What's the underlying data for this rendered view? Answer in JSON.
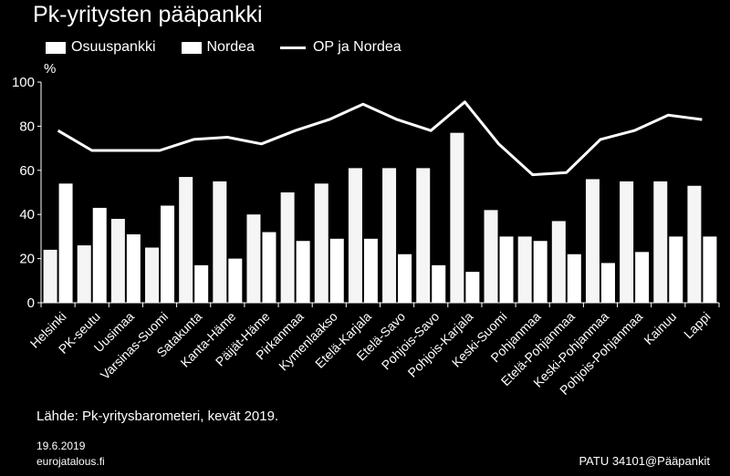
{
  "chart_data": {
    "type": "bar",
    "title": "Pk-yritysten pääpankki",
    "ylabel": "%",
    "ylim": [
      0,
      100
    ],
    "yticks": [
      0,
      20,
      40,
      60,
      80,
      100
    ],
    "categories": [
      "Helsinki",
      "PK-seutu",
      "Uusimaa",
      "Varsinas-Suomi",
      "Satakunta",
      "Kanta-Häme",
      "Päijät-Häme",
      "Pirkanmaa",
      "Kymenlaakso",
      "Etelä-Karjala",
      "Etelä-Savo",
      "Pohjois-Savo",
      "Pohjois-Karjala",
      "Keski-Suomi",
      "Pohjanmaa",
      "Etelä-Pohjanmaa",
      "Keski-Pohjanmaa",
      "Pohjois-Pohjanmaa",
      "Kainuu",
      "Lappi"
    ],
    "series": [
      {
        "name": "Osuuspankki",
        "kind": "bar",
        "values": [
          24,
          26,
          38,
          25,
          57,
          55,
          40,
          50,
          54,
          61,
          61,
          61,
          77,
          42,
          30,
          37,
          56,
          55,
          55,
          53
        ]
      },
      {
        "name": "Nordea",
        "kind": "bar",
        "values": [
          54,
          43,
          31,
          44,
          17,
          20,
          32,
          28,
          29,
          29,
          22,
          17,
          14,
          30,
          28,
          22,
          18,
          23,
          30,
          30
        ]
      },
      {
        "name": "OP ja Nordea",
        "kind": "line",
        "values": [
          78,
          69,
          69,
          69,
          74,
          75,
          72,
          78,
          83,
          90,
          83,
          78,
          91,
          72,
          58,
          59,
          74,
          78,
          85,
          83
        ]
      }
    ],
    "grid": false,
    "legend": "top"
  },
  "colors": {
    "background": "#000000",
    "bar_osuuspankki": "#f5f5f5",
    "bar_nordea": "#ffffff",
    "line": "#ffffff",
    "text": "#ffffff"
  },
  "footer": {
    "source": "Lähde: Pk-yritysbarometeri, kevät 2019.",
    "date": "19.6.2019",
    "site": "eurojatalous.fi",
    "code": "PATU 34101@Pääpankit"
  }
}
